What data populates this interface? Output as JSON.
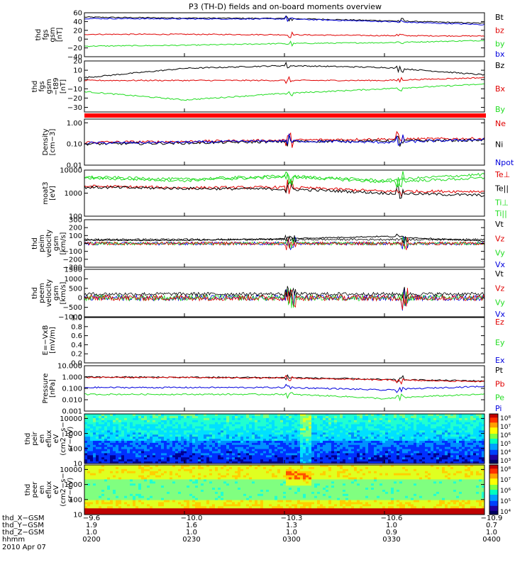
{
  "title": "P3 (TH-D) fields and on-board moments overview",
  "date": "2010 Apr 07",
  "colors": {
    "black": "#000000",
    "red": "#e00000",
    "green": "#22dd22",
    "blue": "#0000dd",
    "frame": "#000000"
  },
  "panels": [
    {
      "ylabel": [
        "thd",
        "fgs",
        "gsm",
        "[nT]"
      ],
      "ticks": [
        "60",
        "40",
        "20",
        "0",
        "−20",
        "−40"
      ],
      "tick_values": [
        60,
        40,
        20,
        0,
        -20,
        -40
      ],
      "ylim": [
        -40,
        60
      ],
      "log": false,
      "legend": [
        {
          "label": "Bt",
          "color": "#000000"
        },
        {
          "label": "bz",
          "color": "#e00000"
        },
        {
          "label": "by",
          "color": "#22dd22"
        },
        {
          "label": "bx",
          "color": "#0000dd"
        }
      ]
    },
    {
      "ylabel": [
        "thd",
        "fgs",
        "gsm",
        "−t89",
        "[nT]"
      ],
      "ticks": [
        "20",
        "10",
        "0",
        "−10",
        "−20",
        "−30"
      ],
      "tick_values": [
        20,
        10,
        0,
        -10,
        -20,
        -30
      ],
      "ylim": [
        -35,
        20
      ],
      "log": false,
      "legend": [
        {
          "label": "Bz",
          "color": "#000000"
        },
        {
          "label": "Bx",
          "color": "#e00000"
        },
        {
          "label": "By",
          "color": "#22dd22"
        }
      ]
    },
    {
      "ylabel": [
        "Density",
        "[cm−3]"
      ],
      "ticks": [
        "1.00",
        "0.10",
        "0.01"
      ],
      "tick_values": [
        1.0,
        0.1,
        0.01
      ],
      "ylim": [
        0.01,
        1.5
      ],
      "log": true,
      "legend": [
        {
          "label": "Ne",
          "color": "#e00000"
        },
        {
          "label": "Ni",
          "color": "#000000"
        },
        {
          "label": "Npot",
          "color": "#0000dd"
        }
      ]
    },
    {
      "ylabel": [
        "moat3",
        "[eV]"
      ],
      "ticks": [
        "10000",
        "1000",
        "100"
      ],
      "tick_values": [
        10000,
        1000,
        100
      ],
      "ylim": [
        100,
        10000
      ],
      "log": true,
      "legend": [
        {
          "label": "Te⊥",
          "color": "#e00000"
        },
        {
          "label": "Te||",
          "color": "#000000"
        },
        {
          "label": "Ti⊥",
          "color": "#22dd22"
        },
        {
          "label": "Ti||",
          "color": "#22dd22"
        }
      ]
    },
    {
      "ylabel": [
        "thd",
        "peim",
        "velocity",
        "gsm",
        "[km/s]"
      ],
      "ticks": [
        "300",
        "200",
        "100",
        "0",
        "−100",
        "−200",
        "−300"
      ],
      "tick_values": [
        300,
        200,
        100,
        0,
        -100,
        -200,
        -300
      ],
      "ylim": [
        -300,
        300
      ],
      "log": false,
      "legend": [
        {
          "label": "Vt",
          "color": "#000000"
        },
        {
          "label": "Vz",
          "color": "#e00000"
        },
        {
          "label": "Vy",
          "color": "#22dd22"
        },
        {
          "label": "Vx",
          "color": "#0000dd"
        }
      ]
    },
    {
      "ylabel": [
        "thd",
        "peem",
        "velocity",
        "gsm",
        "[km/s]"
      ],
      "ticks": [
        "1500",
        "1000",
        "500",
        "0",
        "−500",
        "−1000"
      ],
      "tick_values": [
        1500,
        1000,
        500,
        0,
        -500,
        -1000
      ],
      "ylim": [
        -1000,
        1500
      ],
      "log": false,
      "legend": [
        {
          "label": "Vt",
          "color": "#000000"
        },
        {
          "label": "Vz",
          "color": "#e00000"
        },
        {
          "label": "Vy",
          "color": "#22dd22"
        },
        {
          "label": "Vx",
          "color": "#0000dd"
        }
      ]
    },
    {
      "ylabel": [
        "E=−VxB",
        "[mV/m]"
      ],
      "ticks": [
        "1.0",
        "0.8",
        "0.6",
        "0.4",
        "0.2",
        "0.0"
      ],
      "tick_values": [
        1.0,
        0.8,
        0.6,
        0.4,
        0.2,
        0.0
      ],
      "ylim": [
        0,
        1
      ],
      "log": false,
      "legend": [
        {
          "label": "Ez",
          "color": "#e00000"
        },
        {
          "label": "Ey",
          "color": "#22dd22"
        },
        {
          "label": "Ex",
          "color": "#0000dd"
        }
      ]
    },
    {
      "ylabel": [
        "Pressure",
        "[nPa]"
      ],
      "ticks": [
        "10.000",
        "1.000",
        "0.100",
        "0.010",
        "0.001"
      ],
      "tick_values": [
        10,
        1,
        0.1,
        0.01,
        0.001
      ],
      "ylim": [
        0.001,
        10
      ],
      "log": true,
      "legend": [
        {
          "label": "Pt",
          "color": "#000000"
        },
        {
          "label": "Pb",
          "color": "#e00000"
        },
        {
          "label": "Pe",
          "color": "#22dd22"
        },
        {
          "label": "Pi",
          "color": "#0000dd"
        }
      ]
    },
    {
      "ylabel": [
        "thd",
        "peir",
        "en",
        "eflux",
        "eV",
        "(cm2−s−",
        "sr−eV)"
      ],
      "ticks": [
        "10000",
        "1000",
        "100",
        "10"
      ],
      "tick_values": [
        10000,
        1000,
        100,
        10
      ],
      "ylim": [
        10,
        20000
      ],
      "log": true,
      "colorbar": [
        "10⁸",
        "10⁷",
        "10⁶",
        "10⁵",
        "10⁴",
        "10³"
      ]
    },
    {
      "ylabel": [
        "thd",
        "peer",
        "en",
        "eflux",
        "eV",
        "(cm2−s−",
        "sr−eV)"
      ],
      "ticks": [
        "10000",
        "1000",
        "100",
        "10"
      ],
      "tick_values": [
        10000,
        1000,
        100,
        10
      ],
      "ylim": [
        10,
        20000
      ],
      "log": true,
      "colorbar": [
        "10⁸",
        "10⁷",
        "10⁶",
        "10⁵",
        "10⁴"
      ]
    }
  ],
  "xaxis": {
    "row_labels": [
      "thd_X−GSM",
      "thd_Y−GSM",
      "thd_Z−GSM",
      "hhmm"
    ],
    "columns": [
      {
        "x": "−9.6",
        "y": "1.9",
        "z": "1.0",
        "hhmm": "0200"
      },
      {
        "x": "−10.0",
        "y": "1.6",
        "z": "1.0",
        "hhmm": "0230"
      },
      {
        "x": "−10.3",
        "y": "1.3",
        "z": "1.0",
        "hhmm": "0300"
      },
      {
        "x": "−10.6",
        "y": "1.0",
        "z": "0.9",
        "hhmm": "0330"
      },
      {
        "x": "−10.9",
        "y": "0.7",
        "z": "1.0",
        "hhmm": "0400"
      }
    ]
  },
  "chart_data": {
    "type": "line",
    "title": "P3 (TH-D) fields and on-board moments overview",
    "x": [
      "0200",
      "0230",
      "0300",
      "0330",
      "0400"
    ],
    "series": [
      {
        "name": "Bt",
        "panel": 0,
        "values": [
          50,
          48,
          47,
          42,
          36
        ]
      },
      {
        "name": "bz",
        "panel": 0,
        "values": [
          11,
          11,
          10,
          8,
          7
        ]
      },
      {
        "name": "by",
        "panel": 0,
        "values": [
          -16,
          -14,
          -10,
          -8,
          -3
        ]
      },
      {
        "name": "bx",
        "panel": 0,
        "values": [
          47,
          46,
          46,
          40,
          33
        ]
      },
      {
        "name": "Bz",
        "panel": 1,
        "values": [
          2,
          12,
          15,
          13,
          5
        ]
      },
      {
        "name": "Bx",
        "panel": 1,
        "values": [
          -1,
          -1,
          -1,
          -1,
          2
        ]
      },
      {
        "name": "By",
        "panel": 1,
        "values": [
          -13,
          -22,
          -15,
          -10,
          -5
        ]
      },
      {
        "name": "Ne",
        "panel": 2,
        "values": [
          0.12,
          0.13,
          0.15,
          0.17,
          0.18
        ]
      },
      {
        "name": "Ni",
        "panel": 2,
        "values": [
          0.1,
          0.11,
          0.13,
          0.14,
          0.15
        ]
      },
      {
        "name": "Npot",
        "panel": 2,
        "values": [
          0.11,
          0.12,
          0.14,
          0.12,
          0.16
        ]
      },
      {
        "name": "Te⊥",
        "panel": 3,
        "values": [
          2000,
          1700,
          1800,
          1200,
          1200
        ]
      },
      {
        "name": "Te||",
        "panel": 3,
        "values": [
          1800,
          1600,
          1500,
          1000,
          800
        ]
      },
      {
        "name": "Ti⊥",
        "panel": 3,
        "values": [
          4500,
          3500,
          5000,
          3000,
          4500
        ]
      },
      {
        "name": "Ti||",
        "panel": 3,
        "values": [
          5000,
          4000,
          5500,
          3500,
          6500
        ]
      },
      {
        "name": "Vt",
        "panel": 4,
        "values": [
          40,
          40,
          60,
          90,
          30
        ]
      },
      {
        "name": "Pt",
        "panel": 7,
        "values": [
          1.0,
          0.95,
          0.9,
          0.6,
          0.45
        ]
      },
      {
        "name": "Pb",
        "panel": 7,
        "values": [
          0.95,
          0.9,
          0.8,
          0.55,
          0.4
        ]
      },
      {
        "name": "Pe",
        "panel": 7,
        "values": [
          0.03,
          0.03,
          0.03,
          0.012,
          0.03
        ]
      },
      {
        "name": "Pi",
        "panel": 7,
        "values": [
          0.12,
          0.12,
          0.12,
          0.07,
          0.15
        ]
      }
    ]
  }
}
